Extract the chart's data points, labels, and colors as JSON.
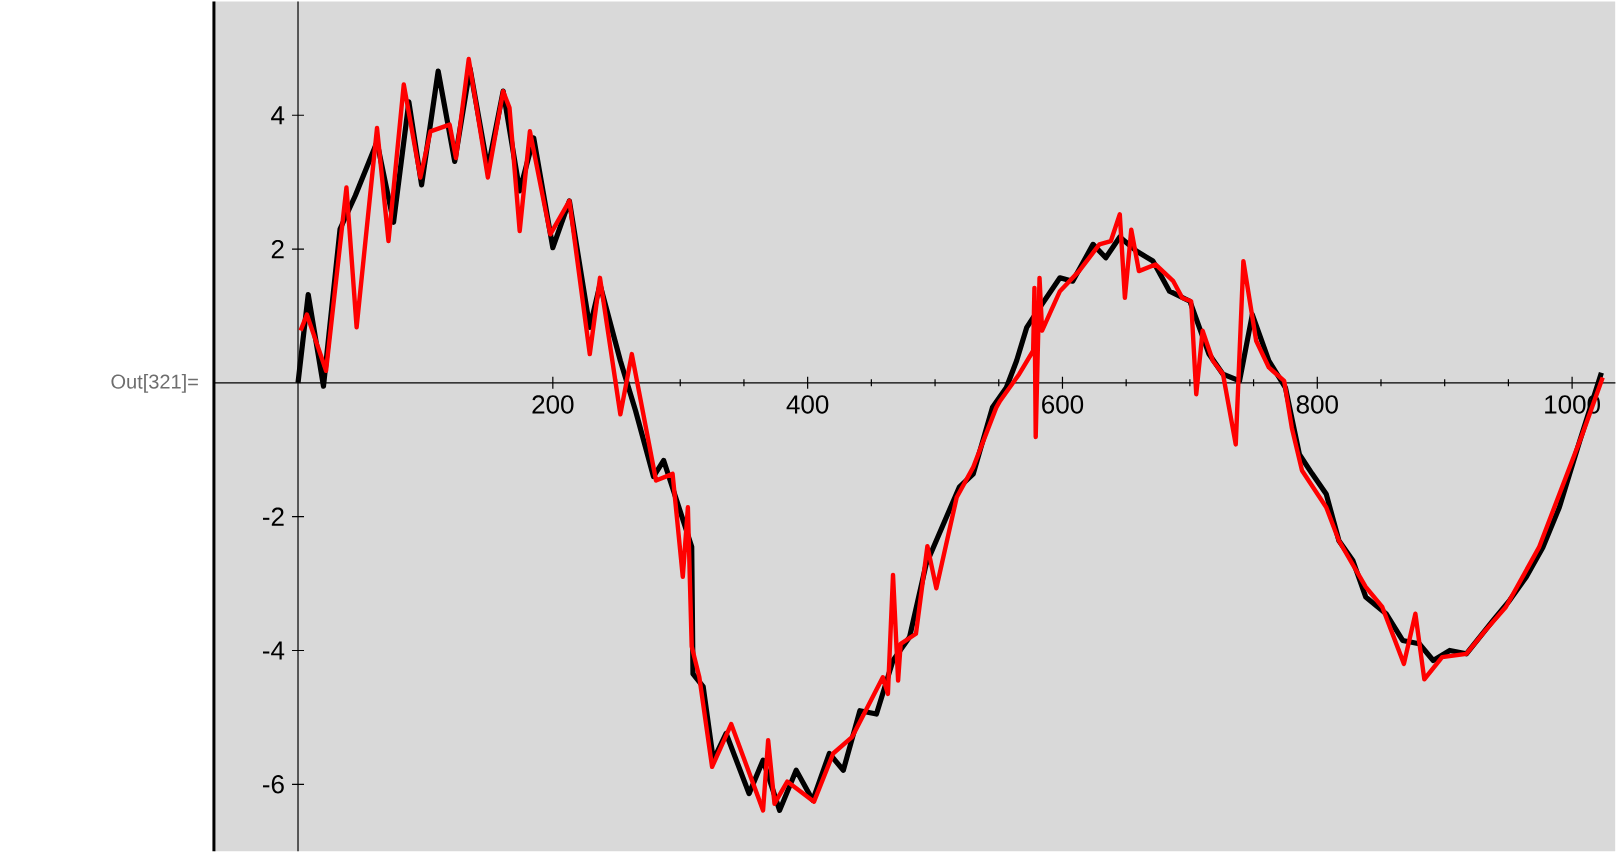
{
  "chart_data": {
    "type": "line",
    "annotations": [
      "Out[321]="
    ],
    "xlim": [
      -66,
      1034
    ],
    "ylim": [
      -7,
      5.7
    ],
    "xticks": [
      200,
      400,
      600,
      800,
      1000
    ],
    "yticks": [
      -6,
      -4,
      -2,
      2,
      4
    ],
    "marker": "none",
    "line_style": "solid",
    "series": [
      {
        "color": "#000000",
        "x": [
          0,
          8,
          20,
          33,
          45,
          62,
          75,
          87,
          97,
          110,
          123,
          135,
          149,
          161,
          174,
          185,
          200,
          213,
          229,
          237,
          253,
          265,
          279,
          287,
          309,
          310,
          318,
          326,
          336,
          354,
          365,
          378,
          391,
          404,
          417,
          428,
          441,
          454,
          467,
          480,
          493,
          519,
          530,
          545,
          556,
          564,
          572,
          582,
          598,
          608,
          624,
          634,
          645,
          658,
          671,
          684,
          700,
          715,
          726,
          739,
          749,
          762,
          775,
          786,
          796,
          807,
          817,
          828,
          838,
          854,
          867,
          880,
          891,
          904,
          917,
          938,
          951,
          964,
          977,
          990,
          1006,
          1023
        ],
        "values": [
          0,
          1.32,
          -0.05,
          2.3,
          2.8,
          3.6,
          2.4,
          4.2,
          2.96,
          4.66,
          3.31,
          4.7,
          3.2,
          4.36,
          2.87,
          3.66,
          2.02,
          2.72,
          0.83,
          1.47,
          0.33,
          -0.42,
          -1.4,
          -1.16,
          -2.45,
          -4.35,
          -4.54,
          -5.64,
          -5.24,
          -6.14,
          -5.64,
          -6.39,
          -5.79,
          -6.24,
          -5.54,
          -5.79,
          -4.9,
          -4.95,
          -4.15,
          -3.8,
          -2.71,
          -1.56,
          -1.36,
          -0.37,
          -0.07,
          0.33,
          0.83,
          1.12,
          1.57,
          1.52,
          2.07,
          1.87,
          2.18,
          1.97,
          1.82,
          1.37,
          1.22,
          0.43,
          0.13,
          0.03,
          1.02,
          0.33,
          -0.07,
          -1.07,
          -1.36,
          -1.66,
          -2.36,
          -2.66,
          -3.2,
          -3.45,
          -3.85,
          -3.9,
          -4.15,
          -4.0,
          -4.05,
          -3.55,
          -3.25,
          -2.9,
          -2.46,
          -1.86,
          -0.87,
          0.15
        ]
      },
      {
        "color": "#ff0000",
        "x": [
          2,
          7,
          22,
          38,
          46,
          62,
          71,
          83,
          96,
          104,
          119,
          124,
          134,
          149,
          161,
          166,
          174,
          182,
          198,
          213,
          229,
          237,
          253,
          262,
          281,
          294,
          302,
          306,
          309,
          315,
          325,
          340,
          365,
          369,
          374,
          384,
          405,
          420,
          435,
          459,
          463,
          467,
          471,
          473,
          485,
          494,
          501,
          517,
          530,
          548,
          551,
          566,
          577,
          578,
          579,
          582,
          584,
          598,
          613,
          629,
          638,
          645,
          649,
          654,
          660,
          673,
          687,
          694,
          701,
          705,
          710,
          718,
          726,
          736,
          742,
          752,
          762,
          774,
          780,
          788,
          807,
          817,
          838,
          851,
          868,
          877,
          884,
          898,
          917,
          932,
          948,
          974,
          1008,
          1024
        ],
        "values": [
          0.78,
          1.02,
          0.18,
          2.92,
          0.83,
          3.81,
          2.12,
          4.46,
          3.07,
          3.76,
          3.86,
          3.36,
          4.84,
          3.07,
          4.36,
          4.11,
          2.27,
          3.76,
          2.22,
          2.72,
          0.43,
          1.57,
          -0.47,
          0.43,
          -1.46,
          -1.36,
          -2.9,
          -1.86,
          -3.94,
          -4.4,
          -5.74,
          -5.1,
          -6.39,
          -5.34,
          -6.29,
          -5.96,
          -6.26,
          -5.54,
          -5.29,
          -4.4,
          -4.65,
          -2.87,
          -4.45,
          -3.9,
          -3.75,
          -2.44,
          -3.07,
          -1.71,
          -1.26,
          -0.37,
          -0.27,
          0.13,
          0.48,
          1.42,
          -0.81,
          1.57,
          0.78,
          1.37,
          1.67,
          2.07,
          2.12,
          2.52,
          1.27,
          2.29,
          1.67,
          1.77,
          1.52,
          1.27,
          1.22,
          -0.17,
          0.78,
          0.33,
          0.13,
          -0.92,
          1.82,
          0.63,
          0.23,
          0.03,
          -0.67,
          -1.31,
          -1.86,
          -2.36,
          -3.05,
          -3.35,
          -4.2,
          -3.45,
          -4.43,
          -4.1,
          -4.05,
          -3.7,
          -3.35,
          -2.46,
          -0.77,
          0.08
        ]
      }
    ]
  }
}
